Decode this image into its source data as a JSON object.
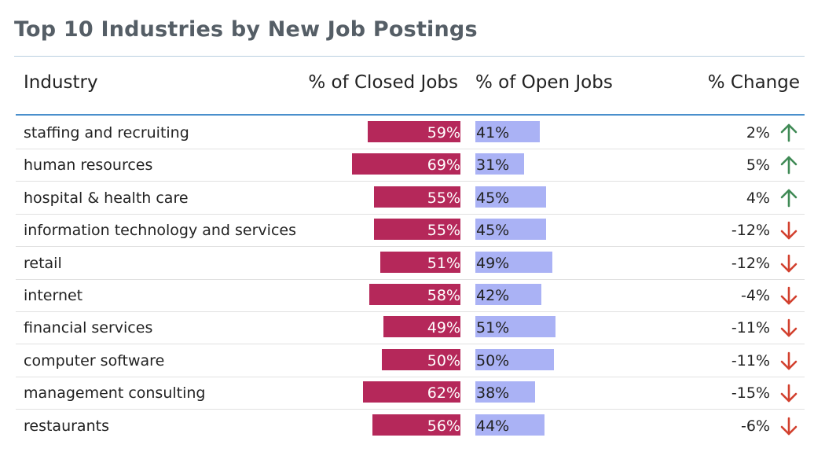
{
  "colors": {
    "closed_bar": "#b5285a",
    "open_bar": "#aab2f5",
    "up_arrow": "#3f8a55",
    "down_arrow": "#d2402e"
  },
  "chart_data": {
    "type": "table",
    "title": "Top 10 Industries by New Job Postings",
    "columns": [
      "Industry",
      "% of Closed Jobs",
      "% of Open Jobs",
      "% Change"
    ],
    "rows": [
      {
        "industry": "staffing and recruiting",
        "closed": 59,
        "closed_label": "59%",
        "open": 41,
        "open_label": "41%",
        "change": 2,
        "change_label": "2%",
        "direction": "up"
      },
      {
        "industry": "human resources",
        "closed": 69,
        "closed_label": "69%",
        "open": 31,
        "open_label": "31%",
        "change": 5,
        "change_label": "5%",
        "direction": "up"
      },
      {
        "industry": "hospital & health care",
        "closed": 55,
        "closed_label": "55%",
        "open": 45,
        "open_label": "45%",
        "change": 4,
        "change_label": "4%",
        "direction": "up"
      },
      {
        "industry": "information technology and services",
        "closed": 55,
        "closed_label": "55%",
        "open": 45,
        "open_label": "45%",
        "change": -12,
        "change_label": "-12%",
        "direction": "down"
      },
      {
        "industry": "retail",
        "closed": 51,
        "closed_label": "51%",
        "open": 49,
        "open_label": "49%",
        "change": -12,
        "change_label": "-12%",
        "direction": "down"
      },
      {
        "industry": "internet",
        "closed": 58,
        "closed_label": "58%",
        "open": 42,
        "open_label": "42%",
        "change": -4,
        "change_label": "-4%",
        "direction": "down"
      },
      {
        "industry": "financial services",
        "closed": 49,
        "closed_label": "49%",
        "open": 51,
        "open_label": "51%",
        "change": -11,
        "change_label": "-11%",
        "direction": "down"
      },
      {
        "industry": "computer software",
        "closed": 50,
        "closed_label": "50%",
        "open": 50,
        "open_label": "50%",
        "change": -11,
        "change_label": "-11%",
        "direction": "down"
      },
      {
        "industry": "management consulting",
        "closed": 62,
        "closed_label": "62%",
        "open": 38,
        "open_label": "38%",
        "change": -15,
        "change_label": "-15%",
        "direction": "down"
      },
      {
        "industry": "restaurants",
        "closed": 56,
        "closed_label": "56%",
        "open": 44,
        "open_label": "44%",
        "change": -6,
        "change_label": "-6%",
        "direction": "down"
      }
    ]
  }
}
